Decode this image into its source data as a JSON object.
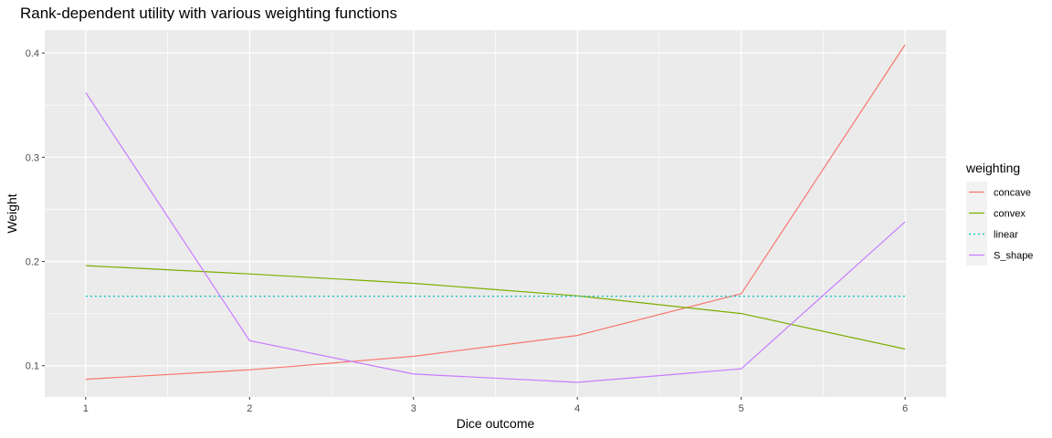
{
  "chart_data": {
    "type": "line",
    "title": "Rank-dependent utility with various weighting functions",
    "xlabel": "Dice outcome",
    "ylabel": "Weight",
    "x": [
      1,
      2,
      3,
      4,
      5,
      6
    ],
    "x_ticks": [
      "1",
      "2",
      "3",
      "4",
      "5",
      "6"
    ],
    "y_ticks": [
      "0.1",
      "0.2",
      "0.3",
      "0.4"
    ],
    "xlim": [
      0.75,
      6.25
    ],
    "ylim": [
      0.07,
      0.422
    ],
    "grid": true,
    "legend": {
      "title": "weighting",
      "position": "right"
    },
    "series": [
      {
        "name": "concave",
        "color": "#F8766D",
        "dash": "solid",
        "values": [
          0.087,
          0.096,
          0.109,
          0.129,
          0.169,
          0.408
        ]
      },
      {
        "name": "convex",
        "color": "#7CAE00",
        "dash": "solid",
        "values": [
          0.196,
          0.188,
          0.179,
          0.167,
          0.15,
          0.116
        ]
      },
      {
        "name": "linear",
        "color": "#00BFC4",
        "dash": "dotted",
        "values": [
          0.1667,
          0.1667,
          0.1667,
          0.1667,
          0.1667,
          0.1667
        ]
      },
      {
        "name": "S_shape",
        "color": "#C77CFF",
        "dash": "solid",
        "values": [
          0.362,
          0.124,
          0.092,
          0.084,
          0.097,
          0.238
        ]
      }
    ]
  }
}
